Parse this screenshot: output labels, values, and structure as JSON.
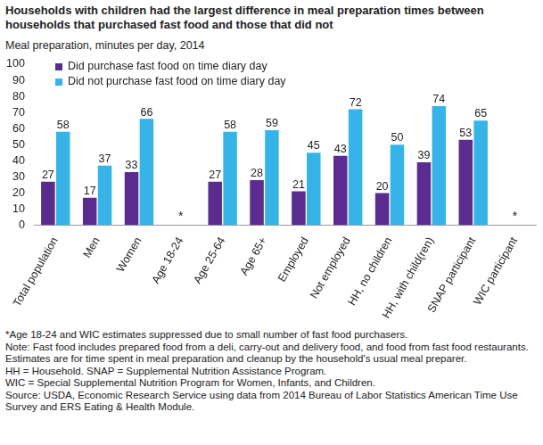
{
  "chart_data": {
    "type": "bar",
    "title": "Households with children had the largest difference in meal preparation times between households that purchased fast food and those that did not",
    "subtitle": "Meal preparation, minutes per day, 2014",
    "categories": [
      "Total population",
      "Men",
      "Women",
      "Age 18-24",
      "Age 25-64",
      "Age 65+",
      "Employed",
      "Not employed",
      "HH, no children",
      "HH, with child(ren)",
      "SNAP participant",
      "WIC participant"
    ],
    "series": [
      {
        "name": "Did purchase fast food on time diary day",
        "color": "#5b2c8f",
        "values": [
          27,
          17,
          33,
          null,
          27,
          28,
          21,
          43,
          20,
          39,
          53,
          null
        ]
      },
      {
        "name": "Did not purchase fast food on time diary day",
        "color": "#36b4e8",
        "values": [
          58,
          37,
          66,
          null,
          58,
          59,
          45,
          72,
          50,
          74,
          65,
          null
        ]
      }
    ],
    "ylim": [
      0,
      100
    ],
    "yticks": [
      0,
      10,
      20,
      30,
      40,
      50,
      60,
      70,
      80,
      90,
      100
    ],
    "grid": false,
    "legend": "top-left",
    "data_labels": true,
    "annotations": [
      {
        "category": "Age 18-24",
        "text": "*"
      },
      {
        "category": "WIC participant",
        "text": "*"
      }
    ],
    "footnotes": [
      "*Age 18-24 and WIC estimates suppressed due to small number of fast food purchasers.",
      "Note: Fast food includes prepared food from a deli, carry-out and delivery food, and food from fast food restaurants. Estimates are for time spent in meal preparation and cleanup by the household's usual meal preparer.",
      "HH = Household. SNAP = Supplemental Nutrition Assistance Program.",
      "WIC = Special Supplemental Nutrition Program for Women, Infants, and Children.",
      "Source: USDA, Economic Research Service using data from 2014 Bureau of Labor Statistics American Time Use Survey and ERS Eating & Health Module."
    ]
  }
}
